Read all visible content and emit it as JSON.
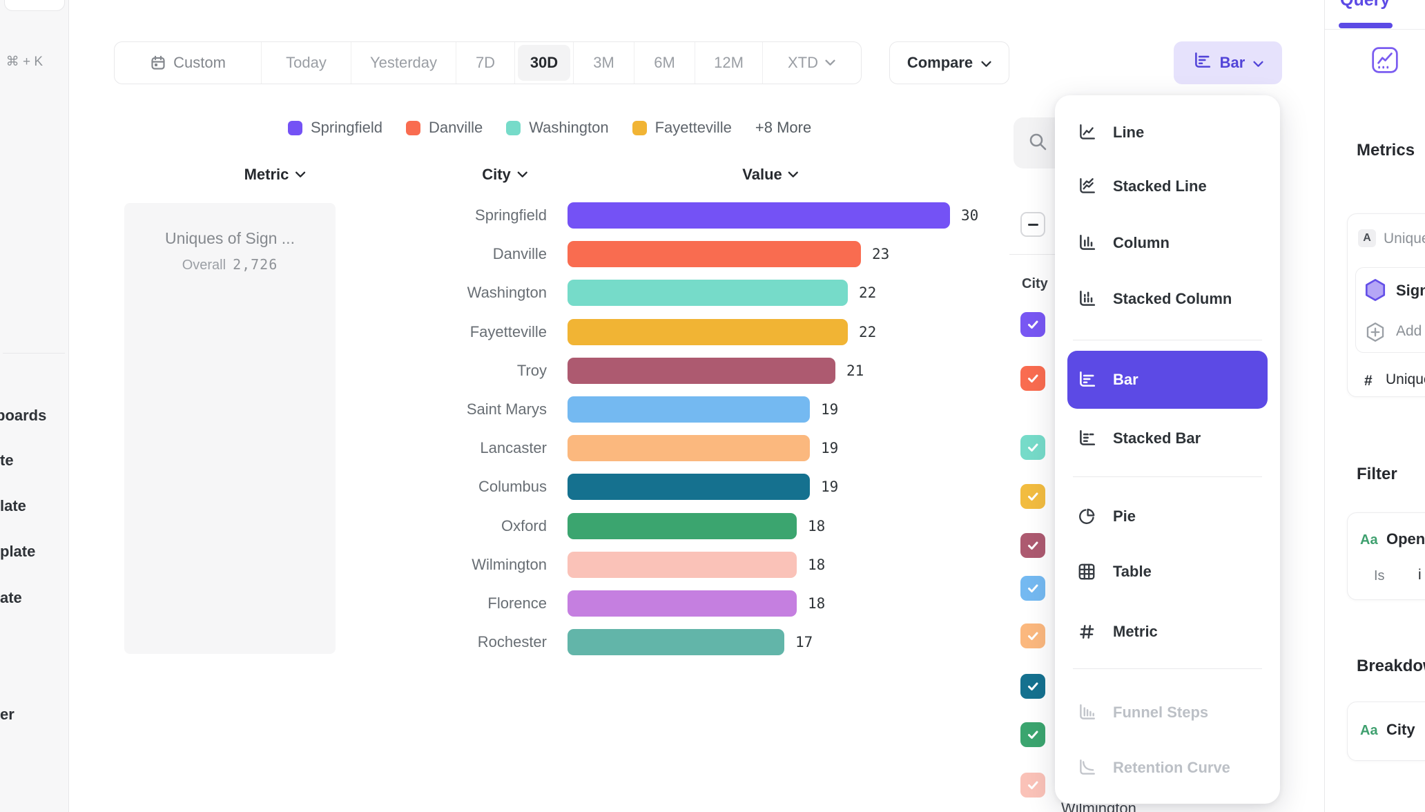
{
  "colors": {
    "accent": "#5C4AE5",
    "accent_light": "#E6E2FC",
    "selected_bg": "#f3f3f4"
  },
  "left_sidebar": {
    "shortcut_hint": "⌘ + K",
    "nav_fragments": [
      "boards",
      "te",
      "late",
      "plate",
      "ate",
      "er"
    ]
  },
  "toolbar": {
    "date_ranges": [
      {
        "label": "Custom",
        "icon": "calendar-icon"
      },
      {
        "label": "Today"
      },
      {
        "label": "Yesterday"
      },
      {
        "label": "7D"
      },
      {
        "label": "30D",
        "selected": true
      },
      {
        "label": "3M"
      },
      {
        "label": "6M"
      },
      {
        "label": "12M"
      },
      {
        "label": "XTD",
        "chevron": true
      }
    ],
    "compare_label": "Compare",
    "chart_type_label": "Bar"
  },
  "legend": {
    "items": [
      {
        "label": "Springfield",
        "color": "#7452F5"
      },
      {
        "label": "Danville",
        "color": "#F96C50"
      },
      {
        "label": "Washington",
        "color": "#76DBC9"
      },
      {
        "label": "Fayetteville",
        "color": "#F1B434"
      }
    ],
    "more_label": "+8 More"
  },
  "table_headers": [
    {
      "label": "Metric"
    },
    {
      "label": "City"
    },
    {
      "label": "Value"
    }
  ],
  "metric_panel": {
    "title": "Uniques of Sign ...",
    "overall_label": "Overall",
    "overall_value": "2,726"
  },
  "chart_data": {
    "type": "bar",
    "orientation": "horizontal",
    "metric": "Uniques of Sign ...",
    "overall": "2,726",
    "xlim": [
      0,
      30
    ],
    "categories": [
      "Springfield",
      "Danville",
      "Washington",
      "Fayetteville",
      "Troy",
      "Saint Marys",
      "Lancaster",
      "Columbus",
      "Oxford",
      "Wilmington",
      "Florence",
      "Rochester"
    ],
    "values": [
      30,
      23,
      22,
      22,
      21,
      19,
      19,
      19,
      18,
      18,
      18,
      17
    ],
    "colors": [
      "#7452F5",
      "#F96C50",
      "#76DBC9",
      "#F1B434",
      "#AD5A70",
      "#74B9F1",
      "#FBB87E",
      "#15718F",
      "#3BA56F",
      "#FAC2B8",
      "#C57FE0",
      "#62B5A9"
    ]
  },
  "breakdown_list": {
    "header": "City",
    "visible_label": "Wilmington",
    "checkbox_colors": [
      "#7857F3",
      "#F96C50",
      "#76DBC9",
      "#F2BC40",
      "#AD5A70",
      "#74B9F1",
      "#FBB87E",
      "#15718F",
      "#3BA56F",
      "#FAC2B8"
    ]
  },
  "chart_menu": {
    "items": [
      {
        "label": "Line",
        "icon": "line-chart-icon"
      },
      {
        "label": "Stacked Line",
        "icon": "stacked-line-chart-icon"
      },
      {
        "label": "Column",
        "icon": "column-chart-icon"
      },
      {
        "label": "Stacked Column",
        "icon": "stacked-column-chart-icon"
      },
      {
        "label": "Bar",
        "icon": "bar-chart-icon",
        "selected": true
      },
      {
        "label": "Stacked Bar",
        "icon": "stacked-bar-chart-icon"
      },
      {
        "label": "Pie",
        "icon": "pie-chart-icon"
      },
      {
        "label": "Table",
        "icon": "table-icon"
      },
      {
        "label": "Metric",
        "icon": "metric-icon"
      },
      {
        "label": "Funnel Steps",
        "icon": "funnel-icon",
        "disabled": true
      },
      {
        "label": "Retention Curve",
        "icon": "retention-curve-icon",
        "disabled": true
      }
    ]
  },
  "right_sidebar": {
    "tab": "Query",
    "metrics_heading": "Metrics",
    "formula_badge": "A",
    "formula_text": "Uniques",
    "event_name": "Sign",
    "add_label": "Add",
    "aggregate_symbol": "#",
    "aggregate_text": "Uniques",
    "filter_heading": "Filter",
    "filter_type_badge": "Aa",
    "filter_property": "Open",
    "filter_operator": "Is",
    "filter_value": "i",
    "breakdown_heading": "Breakdown",
    "breakdown_type_badge": "Aa",
    "breakdown_property": "City"
  }
}
